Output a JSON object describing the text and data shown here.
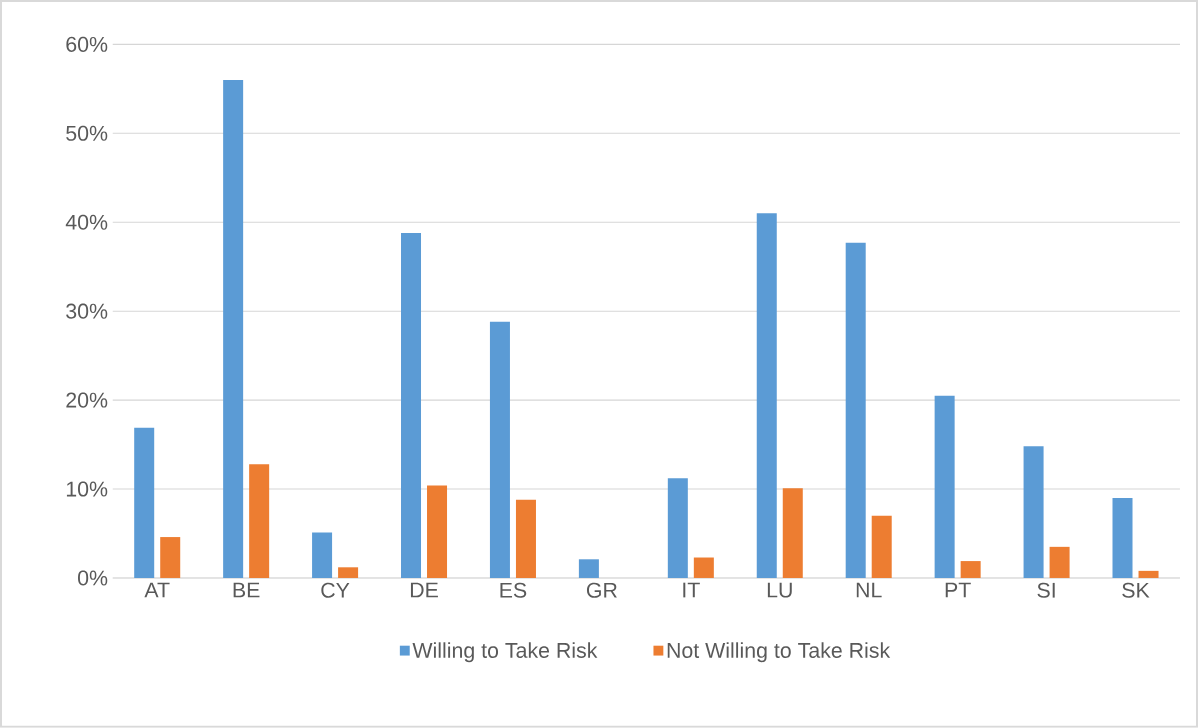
{
  "chart_data": {
    "type": "bar",
    "categories": [
      "AT",
      "BE",
      "CY",
      "DE",
      "ES",
      "GR",
      "IT",
      "LU",
      "NL",
      "PT",
      "SI",
      "SK"
    ],
    "series": [
      {
        "name": "Willing to Take Risk",
        "color": "#5b9bd5",
        "values": [
          16.9,
          56.0,
          5.1,
          38.8,
          28.8,
          2.1,
          11.2,
          41.0,
          37.7,
          20.5,
          14.8,
          9.0
        ]
      },
      {
        "name": "Not Willing to Take Risk",
        "color": "#ed7d31",
        "values": [
          4.6,
          12.8,
          1.2,
          10.4,
          8.8,
          0,
          2.3,
          10.1,
          7.0,
          1.9,
          3.5,
          0.8
        ]
      }
    ],
    "ylim": [
      0,
      60
    ],
    "yticks": [
      {
        "value": 0,
        "label": "0%"
      },
      {
        "value": 10,
        "label": "10%"
      },
      {
        "value": 20,
        "label": "20%"
      },
      {
        "value": 30,
        "label": "30%"
      },
      {
        "value": 40,
        "label": "40%"
      },
      {
        "value": 50,
        "label": "50%"
      },
      {
        "value": 60,
        "label": "60%"
      }
    ],
    "grid": "y",
    "legend": "bottom"
  }
}
